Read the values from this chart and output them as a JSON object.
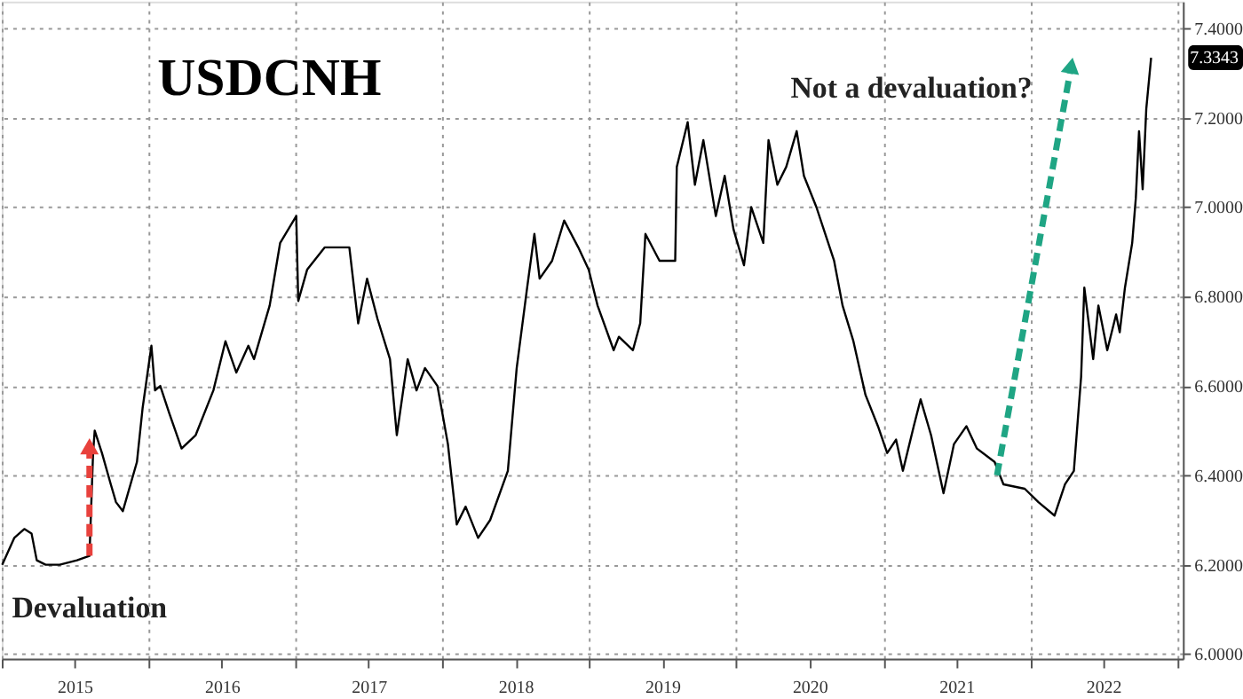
{
  "chart_data": {
    "type": "line",
    "title": "USDCNH",
    "x": [
      "2015-01-02",
      "2015-02-01",
      "2015-02-26",
      "2015-03-16",
      "2015-03-29",
      "2015-04-20",
      "2015-05-25",
      "2015-07-07",
      "2015-08-07",
      "2015-08-16",
      "2015-08-20",
      "2015-09-07",
      "2015-09-29",
      "2015-10-12",
      "2015-10-29",
      "2015-12-03",
      "2015-12-17",
      "2016-01-08",
      "2016-01-17",
      "2016-01-30",
      "2016-02-21",
      "2016-03-23",
      "2016-04-27",
      "2016-06-10",
      "2016-07-10",
      "2016-08-06",
      "2016-09-05",
      "2016-09-19",
      "2016-10-28",
      "2016-11-23",
      "2017-01-02",
      "2017-01-07",
      "2017-01-29",
      "2017-03-14",
      "2017-05-14",
      "2017-06-05",
      "2017-06-27",
      "2017-07-23",
      "2017-08-23",
      "2017-09-09",
      "2017-10-06",
      "2017-10-28",
      "2017-11-18",
      "2017-12-19",
      "2018-01-14",
      "2018-02-05",
      "2018-02-27",
      "2018-03-30",
      "2018-04-29",
      "2018-06-12",
      "2018-07-04",
      "2018-07-30",
      "2018-08-17",
      "2018-08-30",
      "2018-09-30",
      "2018-10-30",
      "2018-12-04",
      "2018-12-30",
      "2019-01-21",
      "2019-03-02",
      "2019-03-15",
      "2019-04-19",
      "2019-05-07",
      "2019-05-20",
      "2019-06-24",
      "2019-08-02",
      "2019-08-06",
      "2019-09-02",
      "2019-09-20",
      "2019-10-11",
      "2019-11-11",
      "2019-12-03",
      "2019-12-25",
      "2020-01-20",
      "2020-02-07",
      "2020-03-08",
      "2020-03-21",
      "2020-04-12",
      "2020-05-04",
      "2020-05-30",
      "2020-06-17",
      "2020-07-18",
      "2020-08-31",
      "2020-09-21",
      "2020-10-18",
      "2020-11-17",
      "2020-12-18",
      "2021-01-10",
      "2021-02-01",
      "2021-02-18",
      "2021-03-17",
      "2021-04-03",
      "2021-04-29",
      "2021-05-30",
      "2021-06-25",
      "2021-07-26",
      "2021-08-21",
      "2021-10-04",
      "2021-10-26",
      "2021-12-18",
      "2022-01-21",
      "2022-03-02",
      "2022-03-28",
      "2022-04-19",
      "2022-05-07",
      "2022-05-15",
      "2022-06-06",
      "2022-06-19",
      "2022-07-11",
      "2022-08-02",
      "2022-08-11",
      "2022-08-24",
      "2022-09-11",
      "2022-09-20",
      "2022-09-28",
      "2022-10-07",
      "2022-10-16",
      "2022-10-28"
    ],
    "series": [
      {
        "color": "#000000",
        "values": [
          6.2,
          6.26,
          6.28,
          6.27,
          6.21,
          6.2,
          6.2,
          6.21,
          6.22,
          6.45,
          6.5,
          6.45,
          6.38,
          6.34,
          6.32,
          6.43,
          6.55,
          6.69,
          6.59,
          6.6,
          6.54,
          6.46,
          6.49,
          6.59,
          6.7,
          6.63,
          6.69,
          6.66,
          6.78,
          6.92,
          6.98,
          6.79,
          6.86,
          6.91,
          6.91,
          6.74,
          6.84,
          6.75,
          6.66,
          6.49,
          6.66,
          6.59,
          6.64,
          6.6,
          6.47,
          6.29,
          6.33,
          6.26,
          6.3,
          6.41,
          6.64,
          6.82,
          6.94,
          6.84,
          6.88,
          6.97,
          6.91,
          6.86,
          6.78,
          6.68,
          6.71,
          6.68,
          6.74,
          6.94,
          6.88,
          6.88,
          7.09,
          7.19,
          7.05,
          7.15,
          6.98,
          7.07,
          6.95,
          6.87,
          7.0,
          6.92,
          7.15,
          7.05,
          7.09,
          7.17,
          7.07,
          7.0,
          6.88,
          6.78,
          6.7,
          6.58,
          6.51,
          6.45,
          6.48,
          6.41,
          6.51,
          6.57,
          6.49,
          6.36,
          6.47,
          6.51,
          6.46,
          6.43,
          6.38,
          6.37,
          6.34,
          6.31,
          6.38,
          6.41,
          6.62,
          6.82,
          6.66,
          6.78,
          6.68,
          6.76,
          6.72,
          6.82,
          6.92,
          7.02,
          7.17,
          7.04,
          7.22,
          7.3343
        ]
      }
    ],
    "xlim": [
      "2015-01-01",
      "2023-01-15"
    ],
    "xticks": [
      {
        "value": "2015-01-01",
        "label": null
      },
      {
        "value": "2015-07-01",
        "label": "2015"
      },
      {
        "value": "2016-01-01",
        "label": null
      },
      {
        "value": "2016-07-01",
        "label": "2016"
      },
      {
        "value": "2017-01-01",
        "label": null
      },
      {
        "value": "2017-07-01",
        "label": "2017"
      },
      {
        "value": "2018-01-01",
        "label": null
      },
      {
        "value": "2018-07-01",
        "label": "2018"
      },
      {
        "value": "2019-01-01",
        "label": null
      },
      {
        "value": "2019-07-01",
        "label": "2019"
      },
      {
        "value": "2020-01-01",
        "label": null
      },
      {
        "value": "2020-07-01",
        "label": "2020"
      },
      {
        "value": "2021-01-01",
        "label": null
      },
      {
        "value": "2021-07-01",
        "label": "2021"
      },
      {
        "value": "2022-01-01",
        "label": null
      },
      {
        "value": "2022-07-01",
        "label": "2022"
      },
      {
        "value": "2023-01-01",
        "label": null
      }
    ],
    "ylim": [
      5.99,
      7.46
    ],
    "yticks": [
      {
        "value": 6.0,
        "label": "6.0000"
      },
      {
        "value": 6.2,
        "label": "6.2000"
      },
      {
        "value": 6.4,
        "label": "6.4000"
      },
      {
        "value": 6.6,
        "label": "6.6000"
      },
      {
        "value": 6.8,
        "label": "6.8000"
      },
      {
        "value": 7.0,
        "label": "7.0000"
      },
      {
        "value": 7.2,
        "label": "7.2000"
      },
      {
        "value": 7.4,
        "label": "7.4000"
      }
    ],
    "grid": true,
    "annotations": [
      {
        "text": "Devaluation",
        "x": "2015-08-07",
        "y": 6.22
      },
      {
        "text": "Not a devaluation?",
        "x": "2021-10-10",
        "y": 6.4
      },
      {
        "text": "7.3343",
        "x": "2022-10-28",
        "y": 7.3343
      }
    ]
  }
}
